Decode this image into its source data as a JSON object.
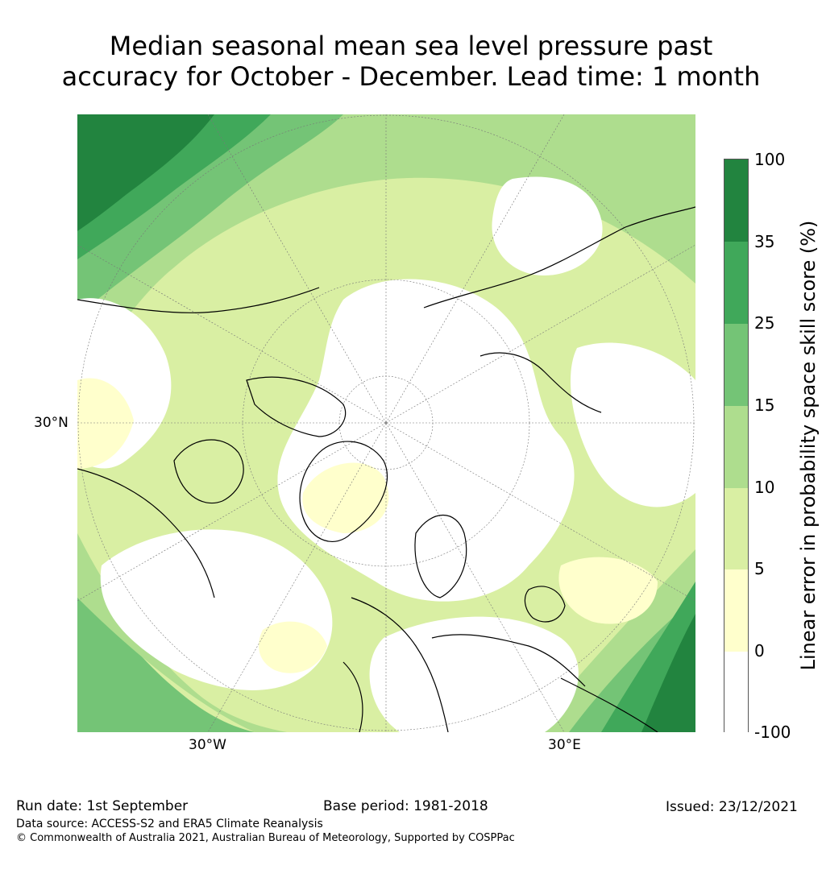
{
  "title_line1": "Median seasonal mean sea level pressure past",
  "title_line2": "accuracy for October - December. Lead time: 1 month",
  "labels": {
    "lat_30n": "30°N",
    "lon_30w": "30°W",
    "lon_30e": "30°E"
  },
  "colorbar": {
    "title": "Linear error in probability space skill score (%)",
    "ticks": [
      "100",
      "35",
      "25",
      "15",
      "10",
      "5",
      "0",
      "-100"
    ],
    "colors": [
      "#22843f",
      "#40a85a",
      "#74c476",
      "#aedd8e",
      "#d9efa3",
      "#ffffcc",
      "#ffffff"
    ]
  },
  "footer": {
    "run_date": "Run date: 1st September",
    "base_period": "Base period: 1981-2018",
    "issued": "Issued: 23/12/2021",
    "data_source": "Data source: ACCESS-S2 and ERA5 Climate Reanalysis",
    "copyright": "© Commonwealth of Australia 2021, Australian Bureau of Meteorology, Supported by COSPPac"
  }
}
